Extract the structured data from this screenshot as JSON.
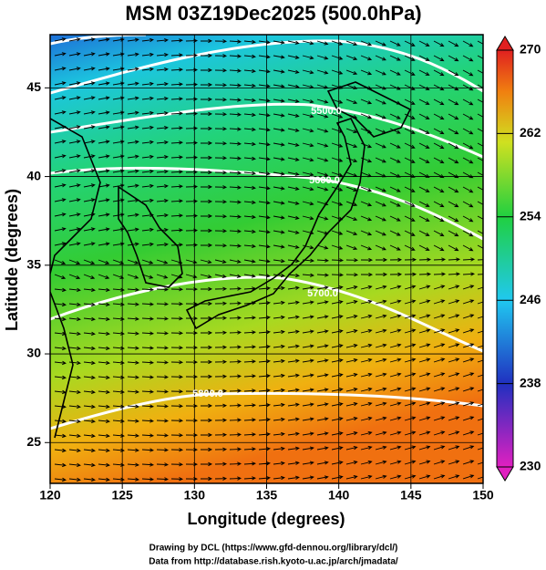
{
  "title": "MSM 03Z19Dec2025 (500.0hPa)",
  "map": {
    "xlabel": "Longitude (degrees)",
    "ylabel": "Latitude  (degrees)",
    "xlim": [
      120,
      150
    ],
    "ylim": [
      22.7,
      48.0
    ],
    "xticks": [
      120,
      125,
      130,
      135,
      140,
      145,
      150
    ],
    "yticks": [
      25,
      30,
      35,
      40,
      45
    ],
    "contour_labels": [
      "5500.0",
      "5600.0",
      "5700.0",
      "5800.0"
    ]
  },
  "colorbar": {
    "lim": [
      230,
      270
    ],
    "ticks": [
      230,
      238,
      246,
      254,
      262,
      270
    ]
  },
  "credits": [
    "Drawing by DCL (https://www.gfd-dennou.org/library/dcl/)",
    "Data from http://database.rish.kyoto-u.ac.jp/arch/jmadata/"
  ]
}
